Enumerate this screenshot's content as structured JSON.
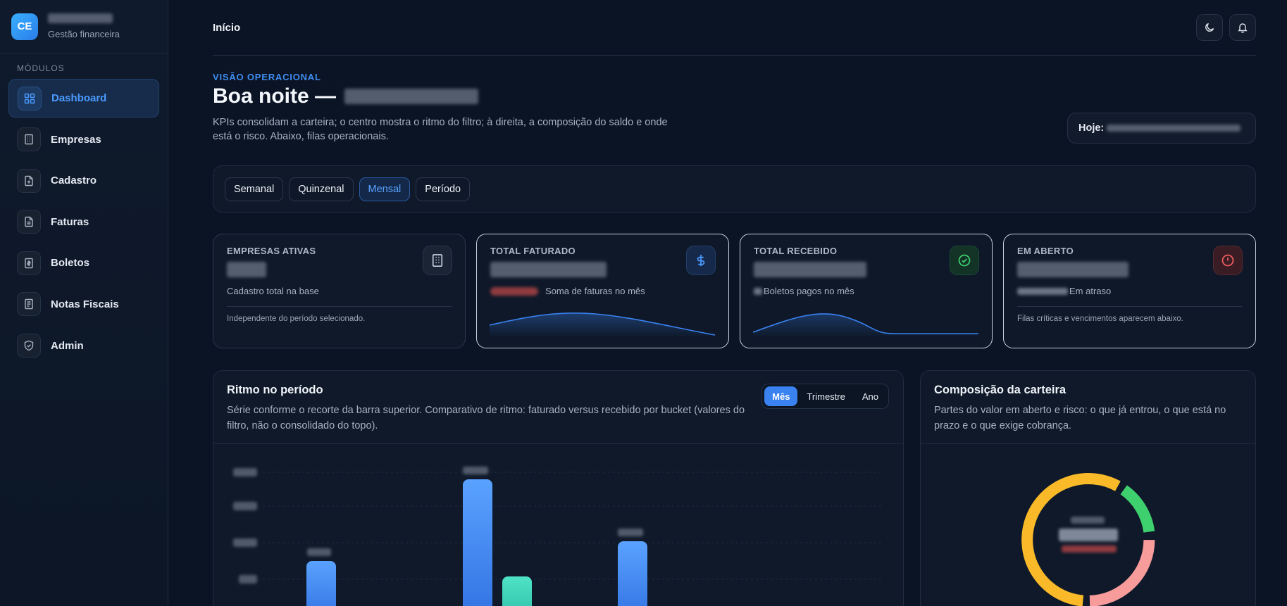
{
  "sidebar": {
    "logo_initials": "CE",
    "subtitle": "Gestão financeira",
    "section": "MÓDULOS",
    "items": [
      {
        "label": "Dashboard",
        "icon": "grid-icon"
      },
      {
        "label": "Empresas",
        "icon": "building-icon"
      },
      {
        "label": "Cadastro",
        "icon": "file-plus-icon"
      },
      {
        "label": "Faturas",
        "icon": "file-text-icon"
      },
      {
        "label": "Boletos",
        "icon": "receipt-icon"
      },
      {
        "label": "Notas Fiscais",
        "icon": "document-icon"
      },
      {
        "label": "Admin",
        "icon": "shield-icon"
      }
    ]
  },
  "header": {
    "breadcrumb": "Início"
  },
  "hero": {
    "eyebrow": "VISÃO OPERACIONAL",
    "greeting": "Boa noite —",
    "description": "KPIs consolidam a carteira; o centro mostra o ritmo do filtro; à direita, a composição do saldo e onde está o risco. Abaixo, filas operacionais.",
    "today_label": "Hoje:"
  },
  "filters": [
    "Semanal",
    "Quinzenal",
    "Mensal",
    "Período"
  ],
  "kpis": [
    {
      "title": "EMPRESAS ATIVAS",
      "sub": "Cadastro total na base",
      "note": "Independente do período selecionado.",
      "icon": "building-icon"
    },
    {
      "title": "TOTAL FATURADO",
      "sub": "Soma de faturas no mês",
      "icon": "dollar-icon"
    },
    {
      "title": "TOTAL RECEBIDO",
      "sub": "Boletos pagos no mês",
      "icon": "check-circle-icon"
    },
    {
      "title": "EM ABERTO",
      "sub": "Em atraso",
      "note": "Filas críticas e vencimentos aparecem abaixo.",
      "icon": "alert-circle-icon"
    }
  ],
  "rhythm": {
    "title": "Ritmo no período",
    "description": "Série conforme o recorte da barra superior. Comparativo de ritmo: faturado versus recebido por bucket (valores do filtro, não o consolidado do topo).",
    "segments": [
      "Mês",
      "Trimestre",
      "Ano"
    ]
  },
  "composition": {
    "title": "Composição da carteira",
    "description": "Partes do valor em aberto e risco: o que já entrou, o que está no prazo e o que exige cobrança.",
    "colors": [
      "#f9b928",
      "#3ecf6e",
      "#f79b9b"
    ]
  },
  "colors": {
    "accent": "#3a82f0",
    "teal": "#36d1b8",
    "green": "#3ecf6e",
    "danger": "#ef5d5d"
  }
}
